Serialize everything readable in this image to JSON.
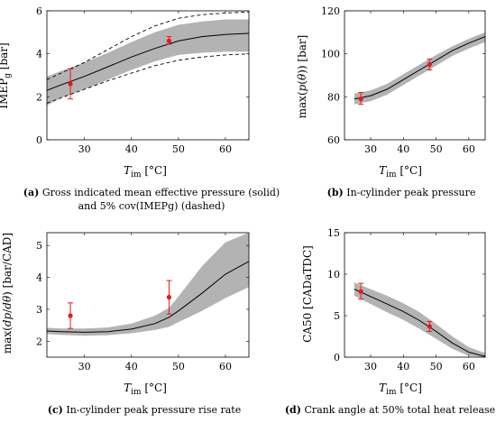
{
  "figure": {
    "captions": [
      {
        "tag": "(a)",
        "text": "Gross indicated mean effective pressure (solid) and 5% cov(IMEPg) (dashed)"
      },
      {
        "tag": "(b)",
        "text": "In-cylinder peak pressure"
      },
      {
        "tag": "(c)",
        "text": "In-cylinder peak pressure rise rate"
      },
      {
        "tag": "(d)",
        "text": "Crank angle at 50% total heat release"
      }
    ]
  },
  "chart_data": [
    {
      "type": "line",
      "xlabel": "T_im [°C]",
      "ylabel": "IMEP_g [bar]",
      "xlim": [
        22,
        65
      ],
      "ylim": [
        0,
        6
      ],
      "xticks": [
        30,
        40,
        50,
        60
      ],
      "yticks": [
        0,
        2,
        4,
        6
      ],
      "grid": false,
      "series": [
        {
          "role": "mean",
          "style": "solid",
          "x": [
            22,
            25,
            30,
            35,
            40,
            45,
            50,
            55,
            60,
            65
          ],
          "y": [
            2.3,
            2.55,
            2.95,
            3.4,
            3.85,
            4.25,
            4.6,
            4.8,
            4.9,
            4.95
          ]
        },
        {
          "role": "upper",
          "style": "dashed",
          "x": [
            22,
            25,
            30,
            35,
            40,
            45,
            50,
            55,
            60,
            65
          ],
          "y": [
            2.8,
            3.1,
            3.6,
            4.2,
            4.8,
            5.3,
            5.65,
            5.82,
            5.9,
            5.95
          ]
        },
        {
          "role": "lower",
          "style": "dashed",
          "x": [
            22,
            25,
            30,
            35,
            40,
            45,
            50,
            55,
            60,
            65
          ],
          "y": [
            1.7,
            1.95,
            2.35,
            2.75,
            3.1,
            3.45,
            3.7,
            3.85,
            3.95,
            4.0
          ]
        },
        {
          "role": "band",
          "style": "fill",
          "x": [
            22,
            25,
            30,
            35,
            40,
            45,
            50,
            55,
            60,
            65
          ],
          "upper": [
            2.95,
            3.2,
            3.6,
            4.05,
            4.55,
            5.0,
            5.35,
            5.5,
            5.6,
            5.6
          ],
          "lower": [
            1.6,
            1.95,
            2.35,
            2.8,
            3.25,
            3.65,
            3.95,
            4.05,
            4.1,
            4.1
          ]
        }
      ],
      "measurements": [
        {
          "x": 27,
          "y": 2.6,
          "ymin": 1.9,
          "ymax": 3.3
        },
        {
          "x": 48,
          "y": 4.6,
          "ymin": 4.45,
          "ymax": 4.8
        }
      ]
    },
    {
      "type": "line",
      "xlabel": "T_im [°C]",
      "ylabel": "max(p(θ)) [bar]",
      "xlim": [
        22,
        65
      ],
      "ylim": [
        60,
        120
      ],
      "xticks": [
        30,
        40,
        50,
        60
      ],
      "yticks": [
        60,
        80,
        100,
        120
      ],
      "grid": false,
      "series": [
        {
          "role": "mean",
          "style": "solid",
          "x": [
            25,
            30,
            35,
            40,
            45,
            50,
            55,
            60,
            65
          ],
          "y": [
            79,
            80.5,
            83.5,
            88,
            92.5,
            97,
            101.5,
            105,
            108
          ]
        },
        {
          "role": "band",
          "style": "fill",
          "x": [
            25,
            30,
            35,
            40,
            45,
            50,
            55,
            60,
            65
          ],
          "upper": [
            81.5,
            83,
            86,
            90.5,
            95,
            99.5,
            103.5,
            107,
            110
          ],
          "lower": [
            76.5,
            78,
            81,
            85.5,
            90,
            94.5,
            99,
            102.5,
            105.5
          ]
        }
      ],
      "measurements": [
        {
          "x": 27,
          "y": 79,
          "ymin": 76.5,
          "ymax": 82
        },
        {
          "x": 48,
          "y": 95,
          "ymin": 92.5,
          "ymax": 97.5
        }
      ]
    },
    {
      "type": "line",
      "xlabel": "T_im [°C]",
      "ylabel": "max(dp/dθ) [bar/CAD]",
      "xlim": [
        22,
        65
      ],
      "ylim": [
        1.5,
        5.4
      ],
      "xticks": [
        30,
        40,
        50,
        60
      ],
      "yticks": [
        2,
        3,
        4,
        5
      ],
      "grid": false,
      "series": [
        {
          "role": "mean",
          "style": "solid",
          "x": [
            22,
            25,
            30,
            35,
            40,
            45,
            48,
            50,
            55,
            60,
            65
          ],
          "y": [
            2.32,
            2.3,
            2.28,
            2.3,
            2.38,
            2.55,
            2.75,
            2.95,
            3.5,
            4.1,
            4.5
          ]
        },
        {
          "role": "band",
          "style": "fill",
          "x": [
            22,
            25,
            30,
            35,
            40,
            45,
            48,
            50,
            55,
            60,
            65
          ],
          "upper": [
            2.42,
            2.4,
            2.4,
            2.43,
            2.55,
            2.8,
            3.05,
            3.4,
            4.35,
            5.1,
            5.4
          ],
          "lower": [
            2.22,
            2.2,
            2.17,
            2.19,
            2.25,
            2.35,
            2.45,
            2.6,
            2.95,
            3.35,
            3.7
          ]
        }
      ],
      "measurements": [
        {
          "x": 27,
          "y": 2.8,
          "ymin": 2.4,
          "ymax": 3.2
        },
        {
          "x": 48,
          "y": 3.38,
          "ymin": 2.85,
          "ymax": 3.9
        }
      ]
    },
    {
      "type": "line",
      "xlabel": "T_im [°C]",
      "ylabel": "CA50 [CADaTDC]",
      "xlim": [
        22,
        65
      ],
      "ylim": [
        0,
        15
      ],
      "xticks": [
        30,
        40,
        50,
        60
      ],
      "yticks": [
        0,
        5,
        10,
        15
      ],
      "grid": false,
      "series": [
        {
          "role": "mean",
          "style": "solid",
          "x": [
            25,
            30,
            35,
            40,
            45,
            50,
            55,
            60,
            65
          ],
          "y": [
            8.2,
            7.3,
            6.4,
            5.5,
            4.4,
            3.1,
            1.7,
            0.6,
            0.1
          ]
        },
        {
          "role": "band",
          "style": "fill",
          "x": [
            25,
            30,
            35,
            40,
            45,
            50,
            55,
            60,
            65
          ],
          "upper": [
            9.0,
            8.2,
            7.4,
            6.5,
            5.4,
            4.0,
            2.5,
            1.2,
            0.5
          ]
        },
        {
          "role": "band-lower",
          "style": "fill",
          "x": [
            25,
            30,
            35,
            40,
            45,
            50,
            55,
            60,
            65
          ],
          "y": [
            7.4,
            6.4,
            5.4,
            4.5,
            3.4,
            2.2,
            1.0,
            0.15,
            0.0
          ]
        }
      ],
      "measurements": [
        {
          "x": 27,
          "y": 7.9,
          "ymin": 7.0,
          "ymax": 8.9
        },
        {
          "x": 48,
          "y": 3.7,
          "ymin": 3.1,
          "ymax": 4.3
        }
      ]
    }
  ]
}
